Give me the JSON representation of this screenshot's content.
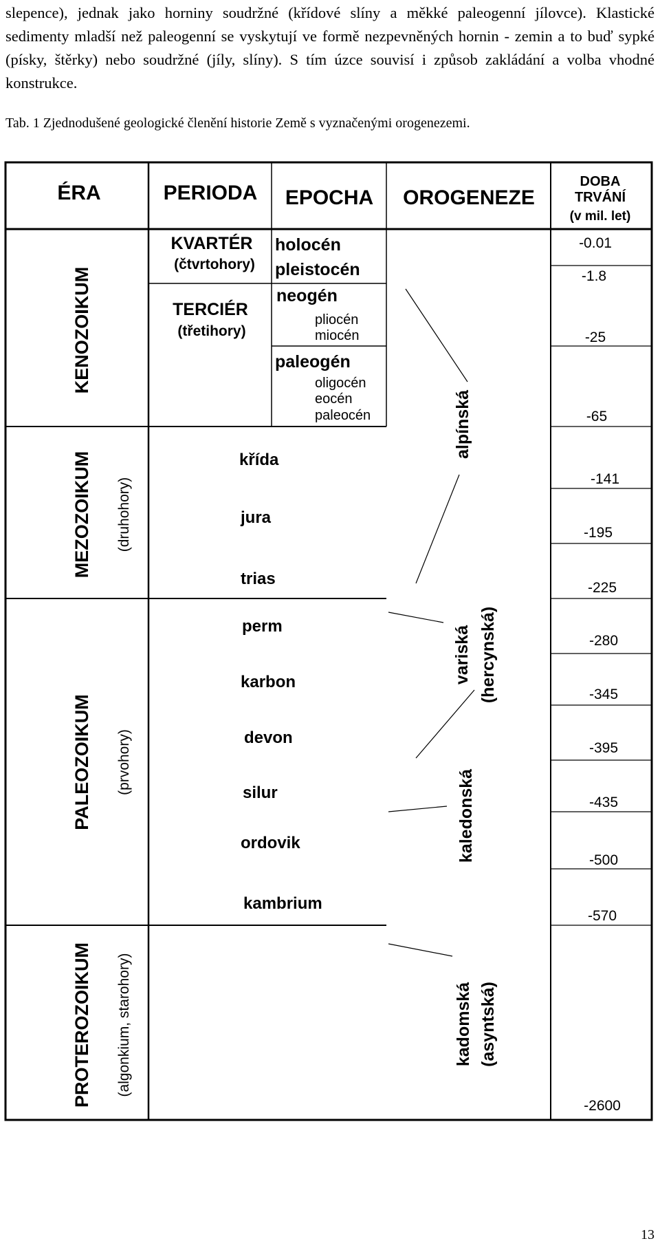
{
  "paragraph": {
    "lines": [
      "slepence), jednak jako horniny soudržné (křídové slíny a měkké paleogenní",
      "jílovce). Klastické sedimenty mladší než paleogenní se vyskytují ve formě",
      "nezpevněných hornin - zemin a to buď sypké (písky, štěrky) nebo soudržné",
      "(jíly, slíny). S tím úzce souvisí i způsob zakládání a volba vhodné konstrukce."
    ]
  },
  "caption": "Tab. 1 Zjednodušené geologické členění historie Země s vyznačenými orogenezemi.",
  "table": {
    "headers": {
      "era": "ÉRA",
      "perioda": "PERIODA",
      "epocha": "EPOCHA",
      "orogeneze": "OROGENEZE",
      "doba": [
        "DOBA",
        "TRVÁNÍ",
        "(v mil. let)"
      ]
    },
    "eras": [
      {
        "name": "KENOZOIKUM",
        "sub": ""
      },
      {
        "name": "MEZOZOIKUM",
        "sub": "(druhohory)"
      },
      {
        "name": "PALEOZOIKUM",
        "sub": "(prvohory)"
      },
      {
        "name": "PROTEROZOIKUM",
        "sub": "(algonkium, starohory)"
      }
    ],
    "kenozoic_periods": [
      {
        "name": "KVARTÉR",
        "sub": "(čtvrtohory)"
      },
      {
        "name": "TERCIÉR",
        "sub": "(třetihory)"
      }
    ],
    "epochs": {
      "holocen": "holocén",
      "pleistocen": "pleistocén",
      "neogen": "neogén",
      "pliocen": "pliocén",
      "miocen": "miocén",
      "paleogen": "paleogén",
      "oligocen": "oligocén",
      "eocen": "eocén",
      "paleocen": "paleocén"
    },
    "periods": [
      "křída",
      "jura",
      "trias",
      "perm",
      "karbon",
      "devon",
      "silur",
      "ordovik",
      "kambrium"
    ],
    "orogenies": {
      "alpinska": "alpínská",
      "variska": [
        "variská",
        "(hercynská)"
      ],
      "kaledonska": "kaledonská",
      "kadomska": [
        "kadomská",
        "(asyntská)"
      ]
    },
    "durations": [
      "-0.01",
      "-1.8",
      "-25",
      "-65",
      "-141",
      "-195",
      "-225",
      "-280",
      "-345",
      "-395",
      "-435",
      "-500",
      "-570",
      "-2600"
    ]
  },
  "page_number": "13"
}
